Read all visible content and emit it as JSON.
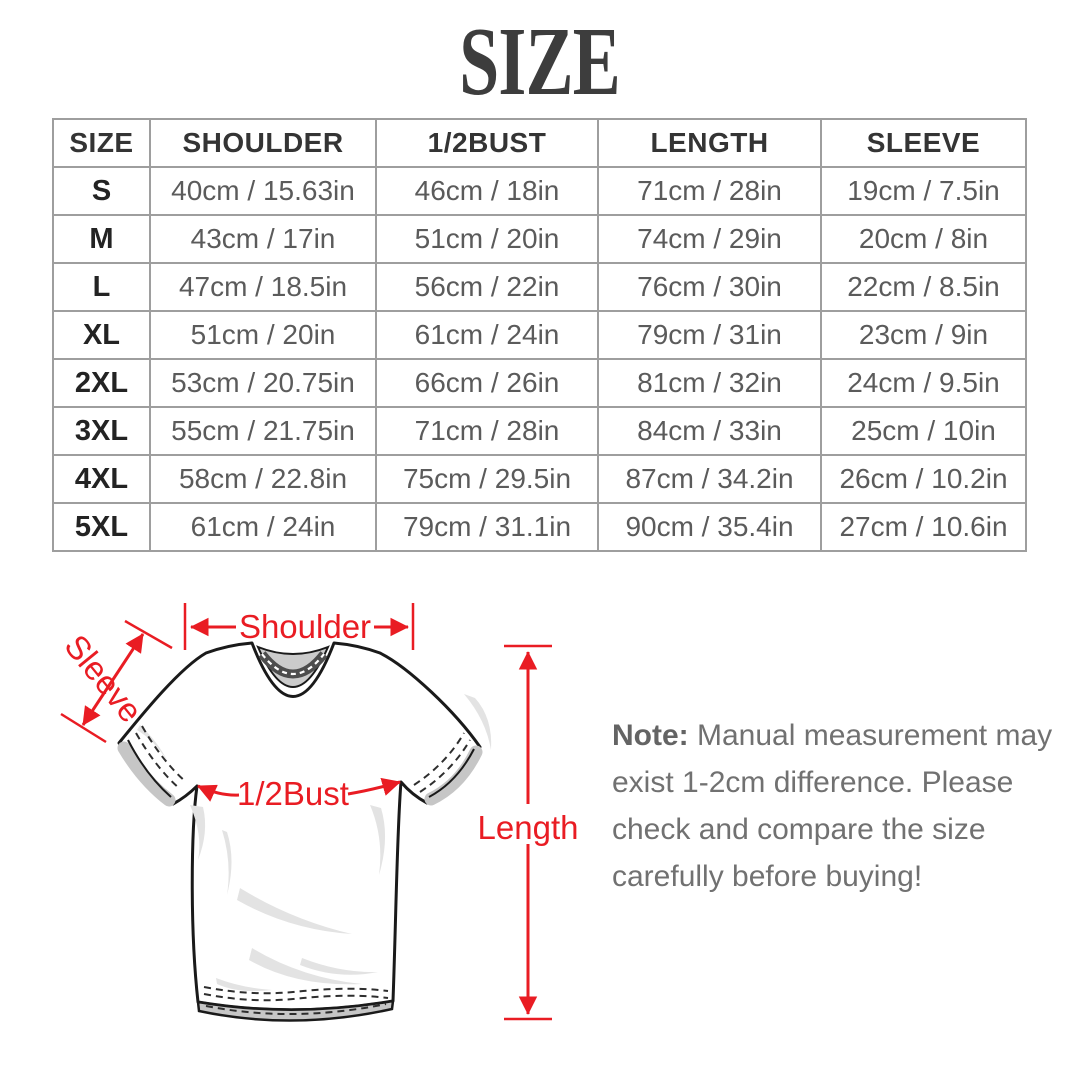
{
  "title": "SIZE",
  "table": {
    "columns": [
      "SIZE",
      "SHOULDER",
      "1/2BUST",
      "LENGTH",
      "SLEEVE"
    ],
    "rows": [
      [
        "S",
        "40cm / 15.63in",
        "46cm / 18in",
        "71cm / 28in",
        "19cm / 7.5in"
      ],
      [
        "M",
        "43cm / 17in",
        "51cm / 20in",
        "74cm / 29in",
        "20cm / 8in"
      ],
      [
        "L",
        "47cm / 18.5in",
        "56cm / 22in",
        "76cm / 30in",
        "22cm / 8.5in"
      ],
      [
        "XL",
        "51cm / 20in",
        "61cm / 24in",
        "79cm / 31in",
        "23cm / 9in"
      ],
      [
        "2XL",
        "53cm / 20.75in",
        "66cm / 26in",
        "81cm / 32in",
        "24cm / 9.5in"
      ],
      [
        "3XL",
        "55cm / 21.75in",
        "71cm / 28in",
        "84cm / 33in",
        "25cm / 10in"
      ],
      [
        "4XL",
        "58cm / 22.8in",
        "75cm / 29.5in",
        "87cm / 34.2in",
        "26cm / 10.2in"
      ],
      [
        "5XL",
        "61cm / 24in",
        "79cm / 31.1in",
        "90cm / 35.4in",
        "27cm / 10.6in"
      ]
    ]
  },
  "diagram": {
    "accent_color": "#e91c23",
    "labels": {
      "shoulder": "Shoulder",
      "sleeve": "Sleeve",
      "half_bust": "1/2Bust",
      "length": "Length"
    }
  },
  "note": {
    "label": "Note:",
    "lines": [
      "Manual measurement may",
      "exist 1-2cm difference. Please",
      "check and compare the size",
      "carefully before buying!"
    ]
  }
}
